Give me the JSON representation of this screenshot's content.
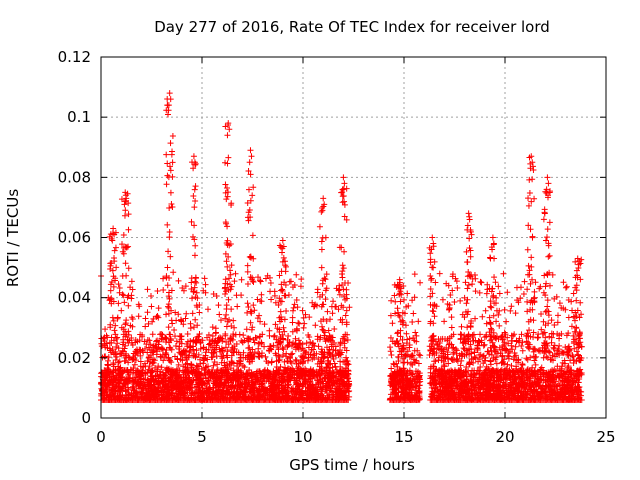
{
  "chart_data": {
    "type": "scatter",
    "title": "Day 277 of 2016, Rate Of TEC Index for receiver lord",
    "xlabel": "GPS time / hours",
    "ylabel": "ROTI / TECUs",
    "xlim": [
      0,
      25
    ],
    "ylim": [
      0,
      0.12
    ],
    "x_ticks": [
      "0",
      "5",
      "10",
      "15",
      "20",
      "25"
    ],
    "x_tick_values": [
      0,
      5,
      10,
      15,
      20,
      25
    ],
    "y_ticks": [
      "0",
      "0.02",
      "0.04",
      "0.06",
      "0.08",
      "0.1",
      "0.12"
    ],
    "y_tick_values": [
      0,
      0.02,
      0.04,
      0.06,
      0.08,
      0.1,
      0.12
    ],
    "grid": true,
    "marker": "+",
    "color": "#ff0000",
    "data_segments": [
      {
        "x_start": 0.0,
        "x_end": 12.3,
        "baseline": 0.006
      },
      {
        "x_start": 14.3,
        "x_end": 15.8,
        "baseline": 0.006
      },
      {
        "x_start": 16.3,
        "x_end": 23.8,
        "baseline": 0.006
      }
    ],
    "peaks": [
      {
        "x": 3.4,
        "y": 0.108
      },
      {
        "x": 6.3,
        "y": 0.098
      },
      {
        "x": 7.4,
        "y": 0.089
      },
      {
        "x": 4.6,
        "y": 0.087
      },
      {
        "x": 21.3,
        "y": 0.087
      },
      {
        "x": 22.1,
        "y": 0.08
      },
      {
        "x": 12.0,
        "y": 0.08
      },
      {
        "x": 1.2,
        "y": 0.075
      },
      {
        "x": 11.0,
        "y": 0.073
      },
      {
        "x": 18.2,
        "y": 0.068
      },
      {
        "x": 0.6,
        "y": 0.063
      },
      {
        "x": 16.4,
        "y": 0.06
      },
      {
        "x": 19.4,
        "y": 0.06
      },
      {
        "x": 9.0,
        "y": 0.059
      },
      {
        "x": 23.6,
        "y": 0.053
      },
      {
        "x": 14.8,
        "y": 0.045
      }
    ]
  }
}
